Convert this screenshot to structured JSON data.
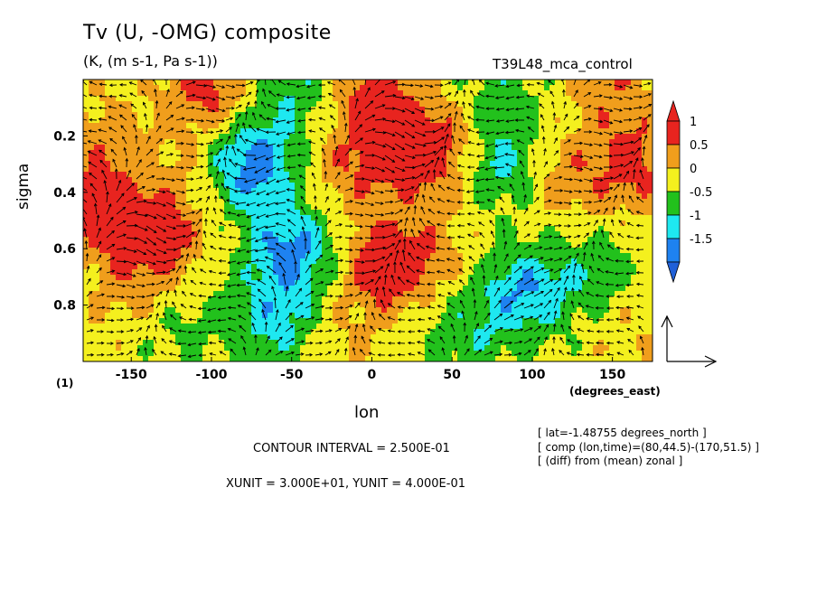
{
  "chart_data": {
    "type": "heatmap",
    "title": "Tv (U, -OMG) composite",
    "subtitle": "(K, (m s-1, Pa s-1))",
    "run_name": "T39L48_mca_control",
    "xlabel": "lon",
    "x_unit_label": "(degrees_east)",
    "ylabel": "sigma",
    "panel_index": "(1)",
    "xlim": [
      -180,
      175
    ],
    "ylim": [
      0,
      1
    ],
    "y_inverted": true,
    "x_ticks": [
      "-150",
      "-100",
      "-50",
      "0",
      "50",
      "100",
      "150"
    ],
    "y_ticks": [
      "0.2",
      "0.4",
      "0.6",
      "0.8"
    ],
    "colorbar": {
      "labels": [
        "1",
        "0.5",
        "0",
        "-0.5",
        "-1",
        "-1.5"
      ],
      "colors": [
        "#e8241f",
        "#f09e1c",
        "#f4f01e",
        "#22c11c",
        "#1ee8f0",
        "#1e82f0",
        "#2060d8"
      ]
    },
    "contour_interval": "CONTOUR INTERVAL = 2.500E-01",
    "vector_units": "XUNIT = 3.000E+01, YUNIT = 4.000E-01",
    "meta": [
      "[ lat=-1.48755 degrees_north ]",
      "[ comp (lon,time)=(80,44.5)-(170,51.5) ]",
      "[ (diff) from (mean) zonal ]"
    ],
    "field_blobs": [
      {
        "lon": -170,
        "sigma": 0.45,
        "value": 1.0
      },
      {
        "lon": -135,
        "sigma": 0.55,
        "value": 1.1
      },
      {
        "lon": -150,
        "sigma": 0.75,
        "value": 0.4
      },
      {
        "lon": -120,
        "sigma": 0.88,
        "value": -0.4
      },
      {
        "lon": -165,
        "sigma": 0.2,
        "value": 0.5
      },
      {
        "lon": -110,
        "sigma": 0.3,
        "value": 0.3
      },
      {
        "lon": -75,
        "sigma": 0.3,
        "value": -1.6
      },
      {
        "lon": -50,
        "sigma": 0.6,
        "value": -1.4
      },
      {
        "lon": -60,
        "sigma": 0.85,
        "value": -1.0
      },
      {
        "lon": -20,
        "sigma": 0.9,
        "value": 0.3
      },
      {
        "lon": -20,
        "sigma": 0.35,
        "value": 0.4
      },
      {
        "lon": 10,
        "sigma": 0.65,
        "value": 1.3
      },
      {
        "lon": 40,
        "sigma": 0.25,
        "value": 1.2
      },
      {
        "lon": 5,
        "sigma": 0.25,
        "value": 0.7
      },
      {
        "lon": 45,
        "sigma": 0.6,
        "value": 0.3
      },
      {
        "lon": 80,
        "sigma": 0.3,
        "value": -1.0
      },
      {
        "lon": 95,
        "sigma": 0.75,
        "value": -1.2
      },
      {
        "lon": 60,
        "sigma": 0.9,
        "value": -0.6
      },
      {
        "lon": 120,
        "sigma": 0.35,
        "value": 0.6
      },
      {
        "lon": 140,
        "sigma": 0.7,
        "value": -0.6
      },
      {
        "lon": 165,
        "sigma": 0.3,
        "value": 0.9
      },
      {
        "lon": 160,
        "sigma": 0.85,
        "value": 0.3
      },
      {
        "lon": -100,
        "sigma": 0.03,
        "value": 1.0
      },
      {
        "lon": -50,
        "sigma": 0.03,
        "value": -0.8
      },
      {
        "lon": 0,
        "sigma": 0.03,
        "value": 1.0
      },
      {
        "lon": 80,
        "sigma": 0.03,
        "value": -0.5
      },
      {
        "lon": 150,
        "sigma": 0.03,
        "value": 0.6
      }
    ]
  }
}
